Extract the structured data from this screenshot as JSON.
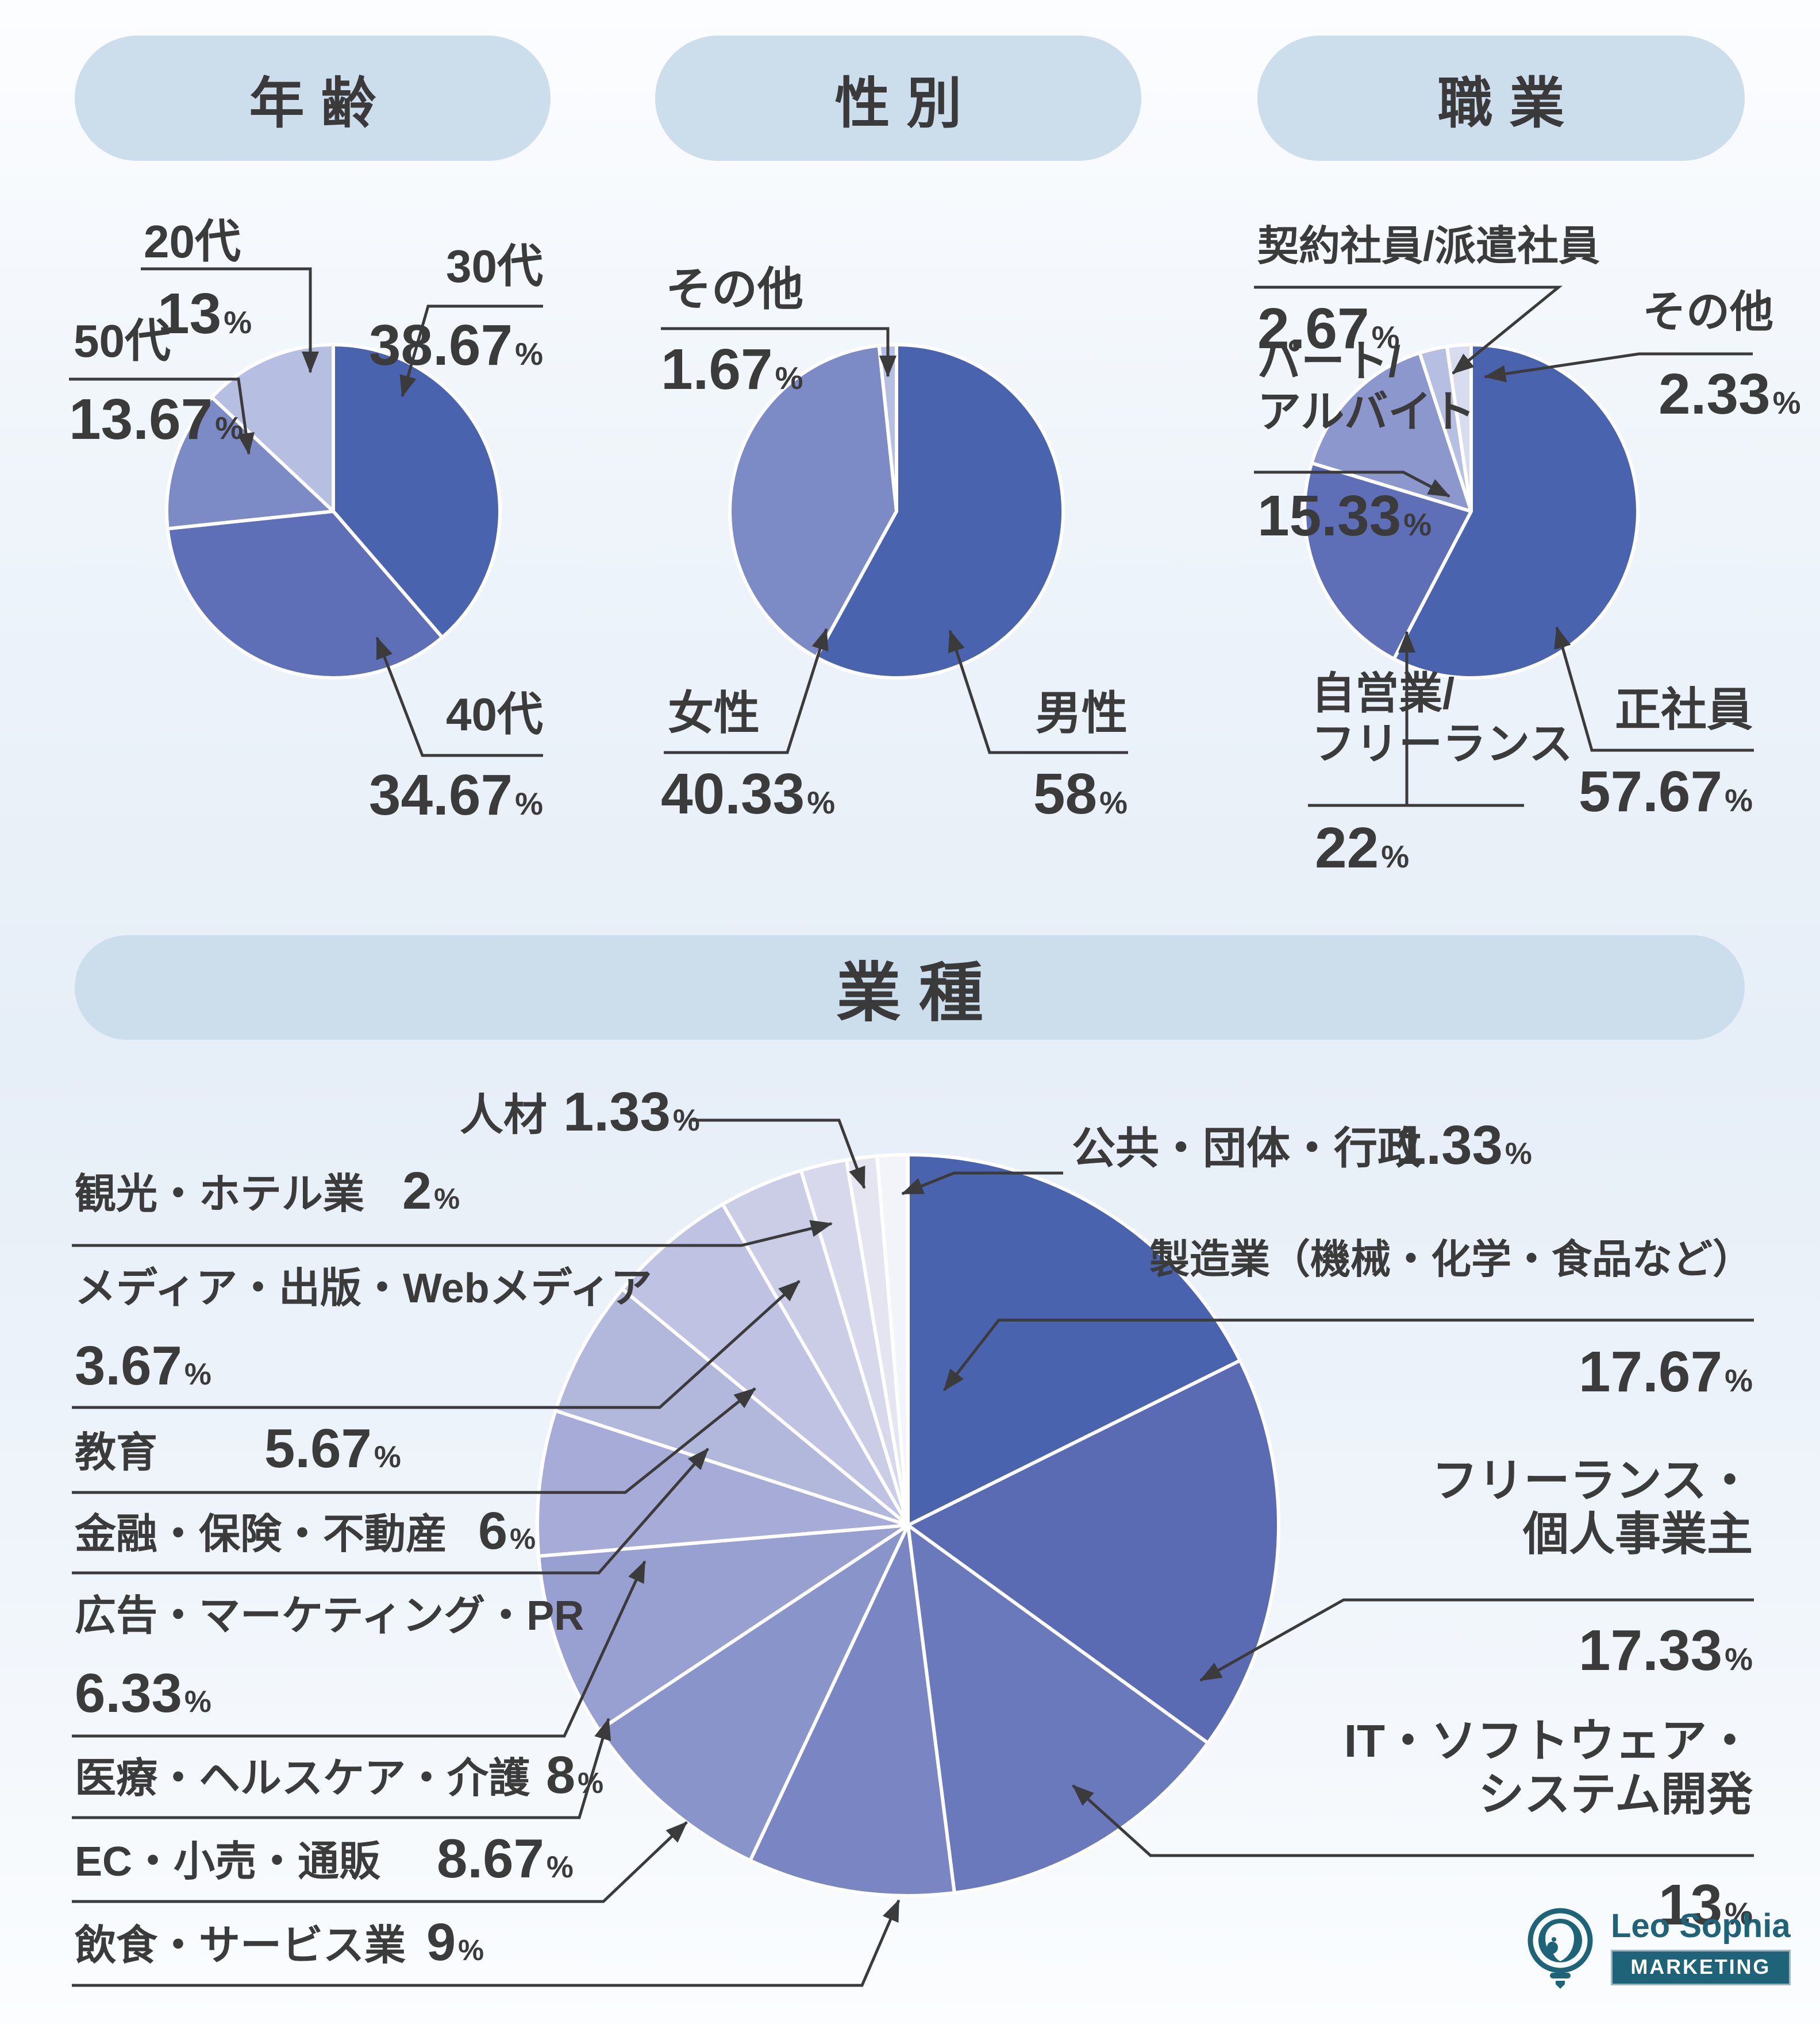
{
  "unit": "%",
  "colors": {
    "header_pill": "#ccddec",
    "text": "#3b3b3b",
    "leader_line": "#3b3b3b",
    "logo_teal": "#1e6378",
    "age_palette": [
      "#4a63ae",
      "#5e6fb7",
      "#7c8ac6",
      "#b6bfe2"
    ],
    "gender_palette": [
      "#4a63ae",
      "#7c8ac6",
      "#b6bfe2"
    ],
    "occupation_palette": [
      "#4a63ae",
      "#5e6fb7",
      "#8b97cd",
      "#b6bfe2",
      "#d9dcef"
    ],
    "industry_palette": [
      "#4a63ae",
      "#5a6bb4",
      "#6a78bc",
      "#7a86c3",
      "#8994ca",
      "#98a0d1",
      "#a6acd7",
      "#b2b7dc",
      "#bfc2e2",
      "#cbcde7",
      "#d7d8ec",
      "#e5e5f2",
      "#f3f3fa"
    ]
  },
  "chart_data": [
    {
      "type": "pie",
      "title": "年齢",
      "legend_position": "callout-labels",
      "slices": [
        {
          "label": "30代",
          "value": 38.67
        },
        {
          "label": "40代",
          "value": 34.67
        },
        {
          "label": "50代",
          "value": 13.67
        },
        {
          "label": "20代",
          "value": 13
        }
      ]
    },
    {
      "type": "pie",
      "title": "性別",
      "legend_position": "callout-labels",
      "slices": [
        {
          "label": "男性",
          "value": 58
        },
        {
          "label": "女性",
          "value": 40.33
        },
        {
          "label": "その他",
          "value": 1.67
        }
      ]
    },
    {
      "type": "pie",
      "title": "職業",
      "legend_position": "callout-labels",
      "slices": [
        {
          "label": "正社員",
          "value": 57.67
        },
        {
          "label": "自営業/フリーランス",
          "value": 22
        },
        {
          "label": "パート/アルバイト",
          "value": 15.33
        },
        {
          "label": "契約社員/派遣社員",
          "value": 2.67
        },
        {
          "label": "その他",
          "value": 2.33
        }
      ]
    },
    {
      "type": "pie",
      "title": "業種",
      "legend_position": "callout-labels",
      "slices": [
        {
          "label": "製造業（機械・化学・食品など）",
          "value": 17.67
        },
        {
          "label": "フリーランス・個人事業主",
          "value": 17.33
        },
        {
          "label": "IT・ソフトウェア・システム開発",
          "value": 13
        },
        {
          "label": "飲食・サービス業",
          "value": 9
        },
        {
          "label": "EC・小売・通販",
          "value": 8.67
        },
        {
          "label": "医療・ヘルスケア・介護",
          "value": 8
        },
        {
          "label": "広告・マーケティング・PR",
          "value": 6.33
        },
        {
          "label": "金融・保険・不動産",
          "value": 6
        },
        {
          "label": "教育",
          "value": 5.67
        },
        {
          "label": "メディア・出版・Webメディア",
          "value": 3.67
        },
        {
          "label": "観光・ホテル業",
          "value": 2
        },
        {
          "label": "人材",
          "value": 1.33
        },
        {
          "label": "公共・団体・行政",
          "value": 1.33
        }
      ]
    }
  ],
  "logo": {
    "name": "Leo Sophia",
    "tag": "MARKETING",
    "icon": "owl-lightbulb-icon"
  }
}
